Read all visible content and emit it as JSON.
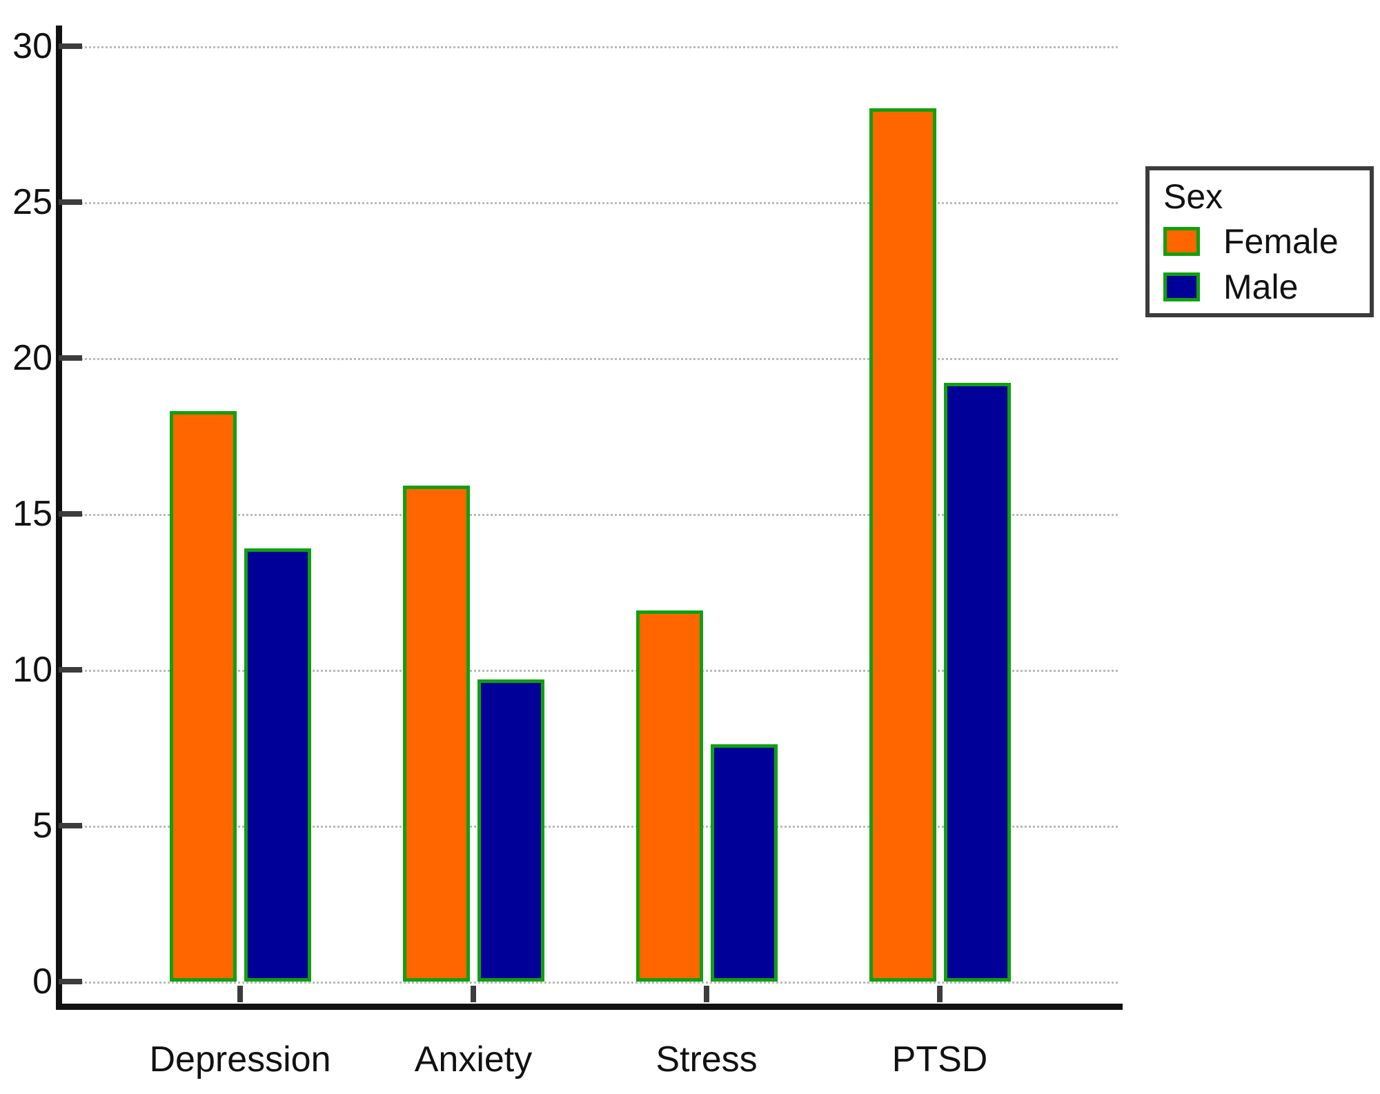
{
  "chart_data": {
    "type": "bar",
    "title": "",
    "xlabel": "",
    "ylabel": "",
    "categories": [
      "Depression",
      "Anxiety",
      "Stress",
      "PTSD"
    ],
    "series": [
      {
        "name": "Female",
        "color": "#FF6600",
        "values": [
          18.3,
          15.9,
          11.9,
          28.0
        ]
      },
      {
        "name": "Male",
        "color": "#000099",
        "values": [
          13.9,
          9.7,
          7.6,
          19.2
        ]
      }
    ],
    "ylim": [
      0,
      30
    ],
    "y_ticks": [
      "0",
      "5",
      "10",
      "15",
      "20",
      "25",
      "30"
    ],
    "grid": "horizontal-dotted",
    "bar_border_color": "#10A010",
    "legend": {
      "title": "Sex",
      "position": "upper-right",
      "entries": [
        "Female",
        "Male"
      ]
    }
  },
  "colors": {
    "background": "#ffffff",
    "axis": "#111111",
    "tick": "#3c3c3c",
    "gridline": "#b9b9b9",
    "text": "#111111",
    "legend_border": "#3c3c3c"
  }
}
